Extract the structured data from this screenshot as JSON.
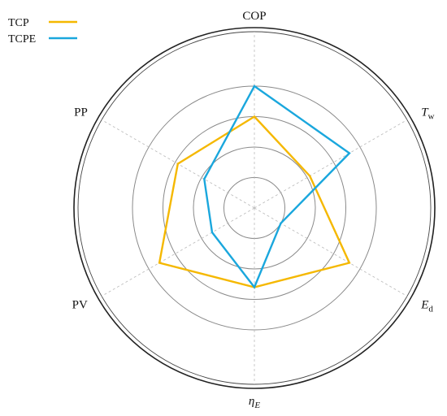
{
  "chart_data": {
    "type": "radar",
    "title": "",
    "axes": [
      {
        "main": "COP",
        "sub": "",
        "italic": false
      },
      {
        "main": "T",
        "sub": "w",
        "italic": true
      },
      {
        "main": "E",
        "sub": "d",
        "italic": true
      },
      {
        "main": "η",
        "sub": "E",
        "italic": true
      },
      {
        "main": "PV",
        "sub": "",
        "italic": false
      },
      {
        "main": "PP",
        "sub": "",
        "italic": false
      }
    ],
    "rings": [
      1,
      2,
      3,
      4
    ],
    "grid": true,
    "legend_position": "top-left",
    "series": [
      {
        "name": "TCP",
        "color": "#F5B800",
        "values": [
          3.0,
          2.1,
          3.6,
          2.6,
          3.6,
          2.9
        ]
      },
      {
        "name": "TCPE",
        "color": "#1AA7DD",
        "values": [
          4.0,
          3.6,
          1.0,
          2.6,
          1.6,
          1.9
        ]
      }
    ]
  }
}
